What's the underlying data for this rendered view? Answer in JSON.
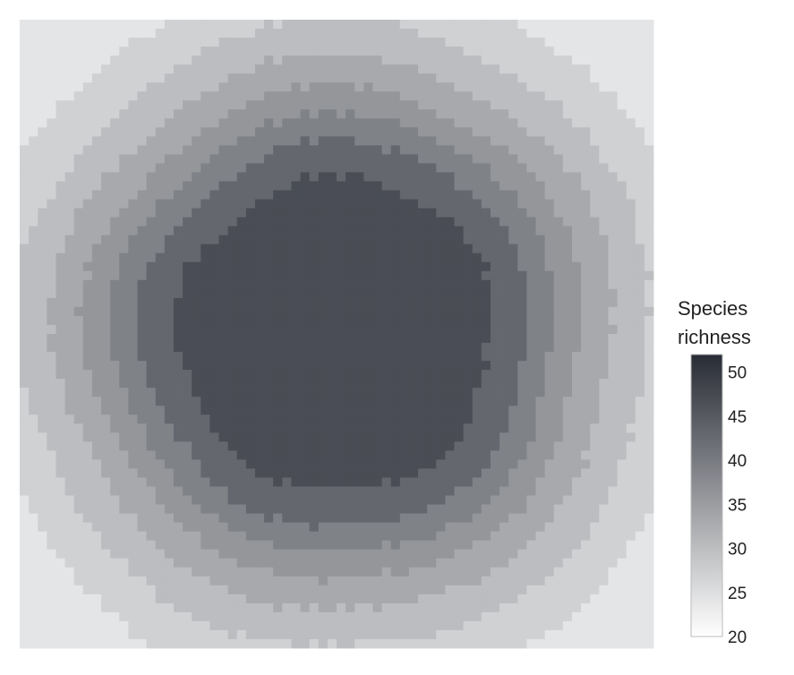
{
  "chart_data": {
    "type": "heatmap",
    "title": "",
    "xlabel": "",
    "ylabel": "",
    "grid": {
      "cols": 70,
      "rows": 70,
      "pattern": "concentric rings centred in the grid; richness decreases outward from the centre",
      "ring_levels": [
        {
          "max_radius_cells": 17.5,
          "richness": 47
        },
        {
          "max_radius_cells": 21.5,
          "richness": 43
        },
        {
          "max_radius_cells": 24.5,
          "richness": 39
        },
        {
          "max_radius_cells": 27.5,
          "richness": 36
        },
        {
          "max_radius_cells": 31.0,
          "richness": 33
        },
        {
          "max_radius_cells": 35.0,
          "richness": 30
        },
        {
          "max_radius_cells": 40.0,
          "richness": 27
        },
        {
          "max_radius_cells": 99.0,
          "richness": 24
        }
      ]
    },
    "colorbar": {
      "title_lines": [
        "Species",
        "richness"
      ],
      "min": 20,
      "max": 52,
      "ticks": [
        "50",
        "45",
        "40",
        "35",
        "30",
        "25",
        "20"
      ],
      "tick_values": [
        50,
        45,
        40,
        35,
        30,
        25,
        20
      ],
      "color_low": "#ffffff",
      "color_high": "#282c35"
    }
  }
}
